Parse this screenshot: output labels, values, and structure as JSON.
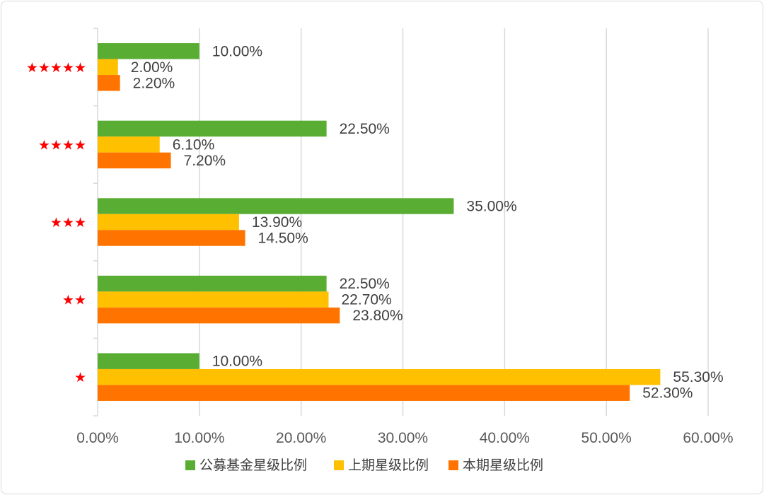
{
  "chart_data": {
    "type": "bar",
    "orientation": "horizontal",
    "categories": [
      "★★★★★",
      "★★★★",
      "★★★",
      "★★",
      "★"
    ],
    "series": [
      {
        "name": "公募基金星级比例",
        "color": "#5aad33",
        "values": [
          10.0,
          22.5,
          35.0,
          22.5,
          10.0
        ],
        "labels": [
          "10.00%",
          "22.50%",
          "35.00%",
          "22.50%",
          "10.00%"
        ]
      },
      {
        "name": "上期星级比例",
        "color": "#ffc000",
        "values": [
          2.0,
          6.1,
          13.9,
          22.7,
          55.3
        ],
        "labels": [
          "2.00%",
          "6.10%",
          "13.90%",
          "22.70%",
          "55.30%"
        ]
      },
      {
        "name": "本期星级比例",
        "color": "#ff7400",
        "values": [
          2.2,
          7.2,
          14.5,
          23.8,
          52.3
        ],
        "labels": [
          "2.20%",
          "7.20%",
          "14.50%",
          "23.80%",
          "52.30%"
        ]
      }
    ],
    "x_ticks": [
      "0.00%",
      "10.00%",
      "20.00%",
      "30.00%",
      "40.00%",
      "50.00%",
      "60.00%"
    ],
    "xlim": [
      0,
      60
    ],
    "grid": true,
    "legend_position": "bottom",
    "category_color": "#ff0000"
  }
}
